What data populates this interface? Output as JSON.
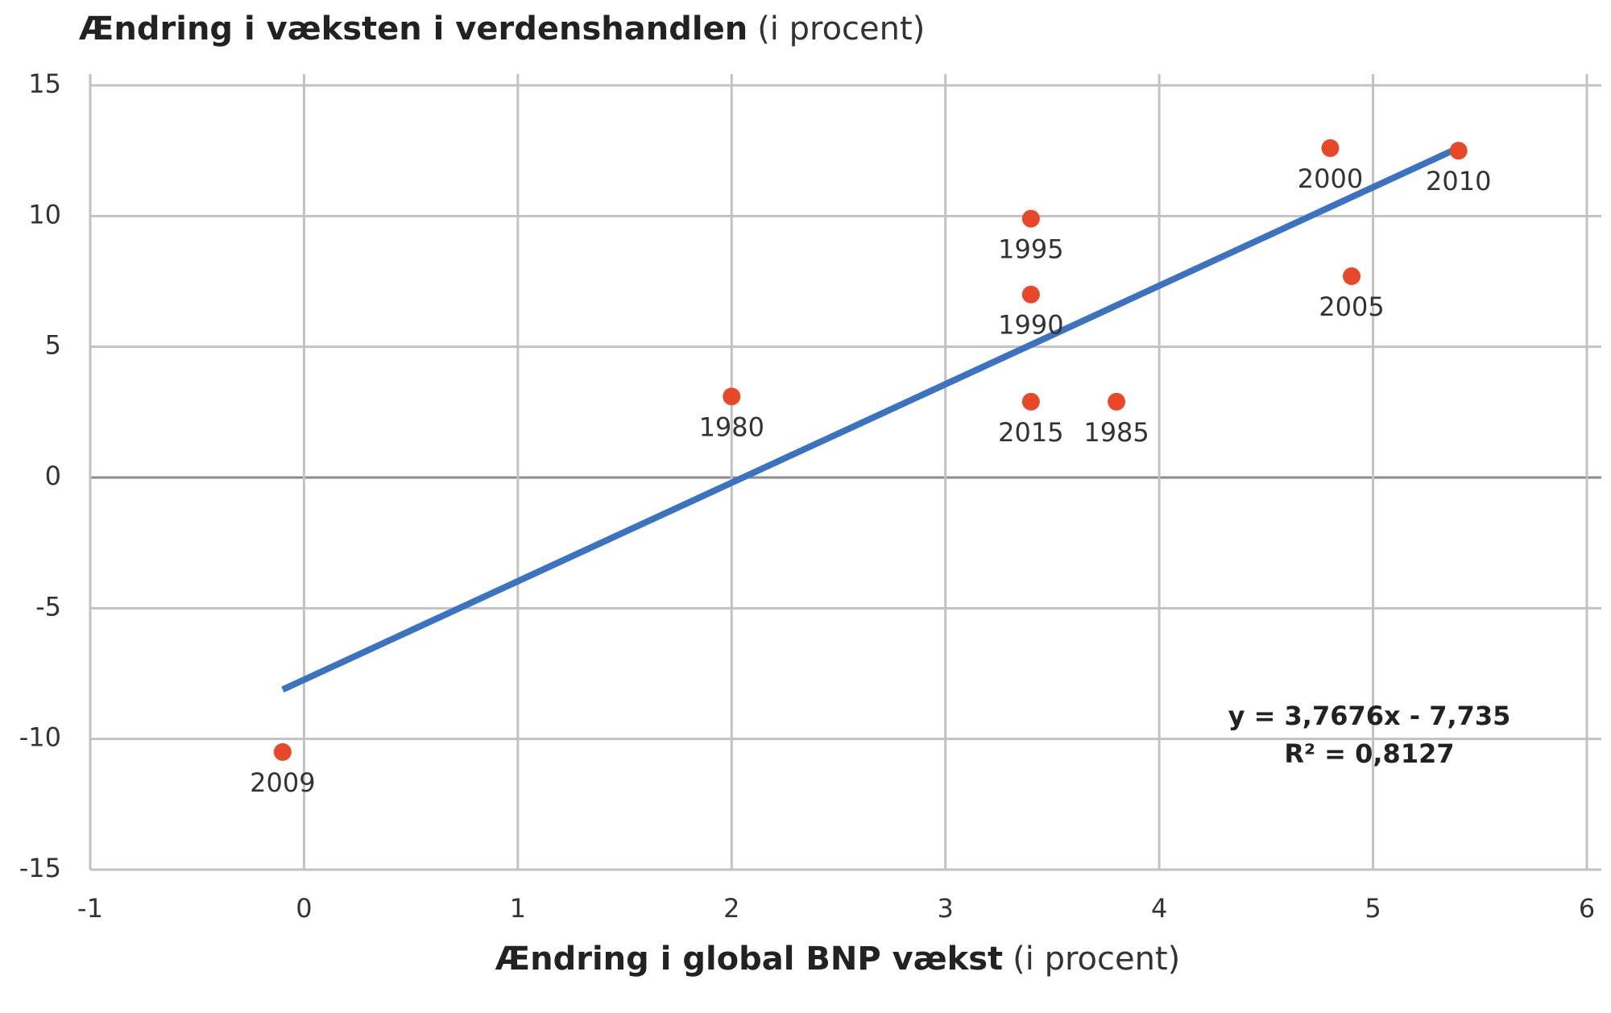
{
  "chart_data": {
    "type": "scatter",
    "title": "Ændring i væksten i verdenshandlen",
    "title_note": "(i procent)",
    "x_label": "Ændring i global BNP vækst",
    "x_label_note": "(i procent)",
    "x": [
      -0.1,
      2.0,
      3.4,
      3.8,
      3.4,
      3.4,
      4.8,
      5.4,
      4.9
    ],
    "values": [
      -10.5,
      3.1,
      2.9,
      2.9,
      7.0,
      9.9,
      12.6,
      12.5,
      7.7
    ],
    "labels": [
      "2009",
      "1980",
      "2015",
      "1985",
      "1990",
      "1995",
      "2000",
      "2010",
      "2005"
    ],
    "color": "#e8482a",
    "trendline": {
      "slope": 3.7676,
      "intercept": -7.735,
      "color": "#3b73c1",
      "equation": "y = 3,7676x - 7,735",
      "r2": "R² = 0,8127"
    },
    "xlim": [
      -1,
      6
    ],
    "xticks": [
      -1,
      0,
      1,
      2,
      3,
      4,
      5,
      6
    ],
    "ylim": [
      -15,
      15
    ],
    "yticks": [
      -15,
      -10,
      -5,
      0,
      5,
      10,
      15
    ],
    "grid": true
  }
}
